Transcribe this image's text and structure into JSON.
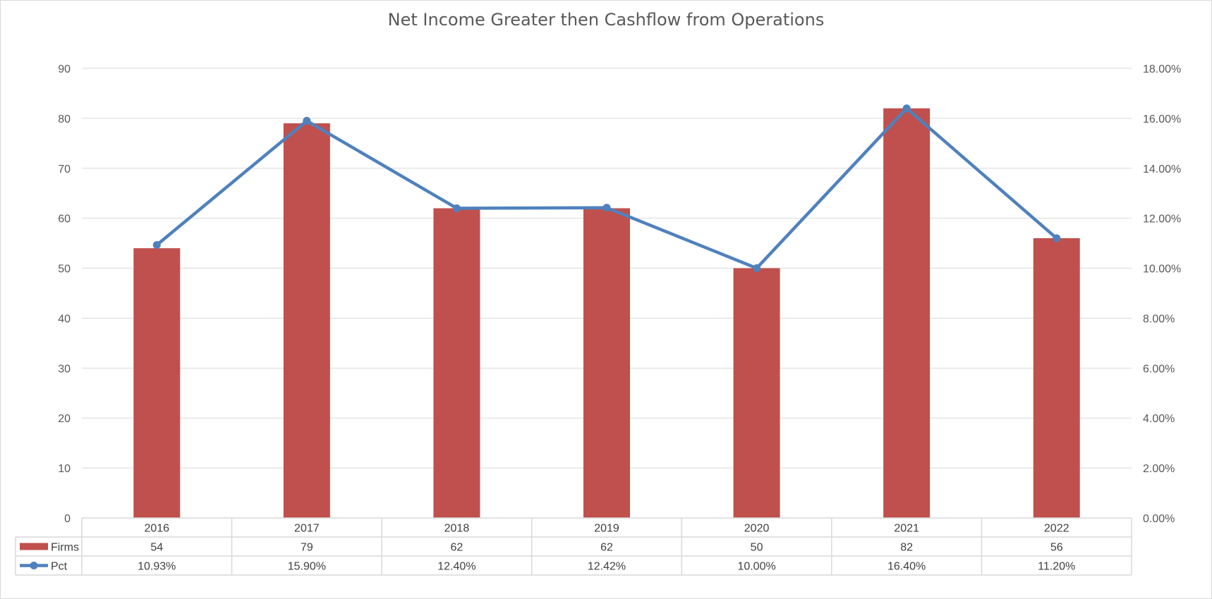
{
  "chart_data": {
    "type": "bar",
    "title": "Net Income Greater then Cashflow from Operations",
    "categories": [
      "2016",
      "2017",
      "2018",
      "2019",
      "2020",
      "2021",
      "2022"
    ],
    "series": [
      {
        "name": "Firms",
        "type": "bar",
        "axis": "left",
        "color": "#c0504d",
        "values": [
          54,
          79,
          62,
          62,
          50,
          82,
          56
        ],
        "table_labels": [
          "54",
          "79",
          "62",
          "62",
          "50",
          "82",
          "56"
        ]
      },
      {
        "name": "Pct",
        "type": "line",
        "axis": "right",
        "color": "#4f81bd",
        "values": [
          10.93,
          15.9,
          12.4,
          12.42,
          10.0,
          16.4,
          11.2
        ],
        "table_labels": [
          "10.93%",
          "15.90%",
          "12.40%",
          "12.42%",
          "10.00%",
          "16.40%",
          "11.20%"
        ]
      }
    ],
    "y_left": {
      "lim": [
        0,
        90
      ],
      "ticks": [
        0,
        10,
        20,
        30,
        40,
        50,
        60,
        70,
        80,
        90
      ],
      "tick_labels": [
        "0",
        "10",
        "20",
        "30",
        "40",
        "50",
        "60",
        "70",
        "80",
        "90"
      ]
    },
    "y_right": {
      "lim": [
        0,
        18
      ],
      "ticks": [
        0,
        2,
        4,
        6,
        8,
        10,
        12,
        14,
        16,
        18
      ],
      "tick_labels": [
        "0.00%",
        "2.00%",
        "4.00%",
        "6.00%",
        "8.00%",
        "10.00%",
        "12.00%",
        "14.00%",
        "16.00%",
        "18.00%"
      ]
    },
    "grid": true,
    "data_table": true,
    "legend": "in data table"
  }
}
